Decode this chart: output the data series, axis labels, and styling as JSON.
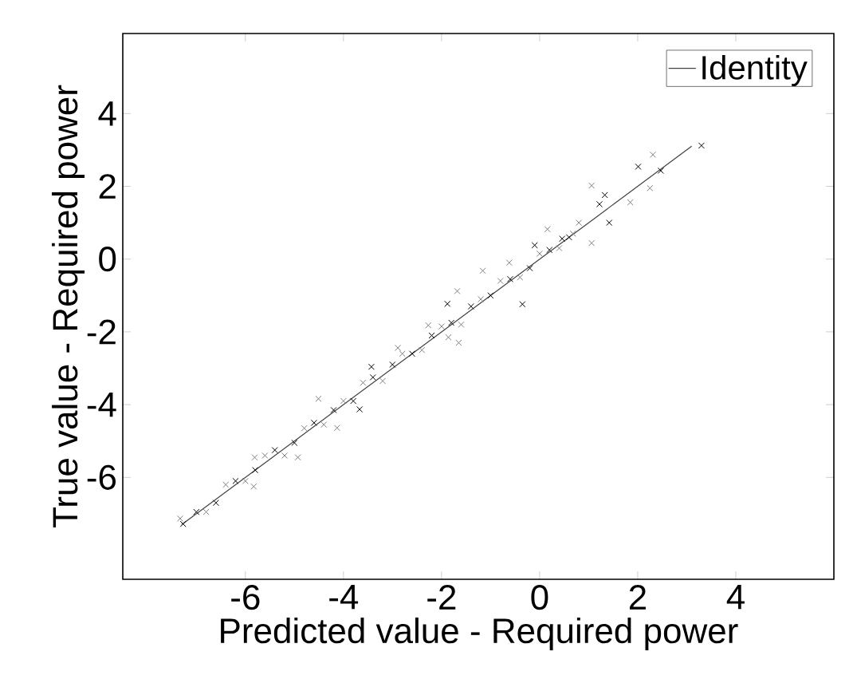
{
  "chart_data": {
    "type": "scatter",
    "xlabel": "Predicted value - Required power",
    "ylabel": "True value - Required power",
    "xlim": [
      -8.5,
      6
    ],
    "ylim": [
      -8.8,
      6.2
    ],
    "xticks": [
      -6,
      -4,
      -2,
      0,
      2,
      4
    ],
    "yticks": [
      -6,
      -4,
      -2,
      0,
      2,
      4
    ],
    "legend": "top right",
    "grid": false,
    "series": [
      {
        "color": "#000000",
        "marker": "cross",
        "x": [
          -7.0,
          -6.6,
          -6.2,
          -5.8,
          -5.4,
          -5.0,
          -4.6,
          -4.2,
          -3.8,
          -3.4,
          -3.0,
          -2.6,
          -2.2,
          -1.8,
          -1.4,
          -1.0,
          -0.6,
          -0.2,
          0.2,
          0.6,
          2.01,
          2.47,
          1.42,
          1.33,
          -0.35,
          -0.1,
          -1.88,
          -3.43,
          -3.67,
          -7.27,
          0.46,
          1.22,
          3.3
        ],
        "values": [
          -6.95,
          -6.7,
          -6.1,
          -5.8,
          -5.25,
          -5.05,
          -4.5,
          -4.15,
          -3.9,
          -3.25,
          -2.9,
          -2.6,
          -2.1,
          -1.75,
          -1.3,
          -1.0,
          -0.55,
          -0.25,
          0.25,
          0.6,
          2.54,
          2.43,
          1.0,
          1.76,
          -1.24,
          0.38,
          -1.23,
          -2.96,
          -4.13,
          -7.28,
          0.56,
          1.51,
          3.12
        ]
      },
      {
        "color": "#808080",
        "marker": "cross",
        "x": [
          -6.8,
          -6.4,
          -6.0,
          -5.6,
          -5.2,
          -4.8,
          -4.4,
          -4.0,
          -3.6,
          -3.2,
          -2.8,
          -2.4,
          -2.0,
          -1.6,
          -1.2,
          -0.8,
          -0.4,
          0.0,
          0.4,
          0.8,
          2.31,
          2.25,
          1.06,
          1.06,
          1.85,
          0.16,
          -1.68,
          -2.27,
          -1.86,
          -1.65,
          -4.13,
          -4.93,
          -5.83,
          -7.33,
          -4.51,
          -5.81,
          -2.89,
          -1.16,
          -0.62,
          0.68
        ],
        "values": [
          -6.95,
          -6.2,
          -6.1,
          -5.4,
          -5.4,
          -4.65,
          -4.55,
          -3.9,
          -3.4,
          -3.35,
          -2.6,
          -2.5,
          -1.85,
          -1.8,
          -1.1,
          -0.6,
          -0.5,
          0.15,
          0.3,
          1.0,
          2.87,
          1.95,
          2.02,
          0.44,
          1.56,
          0.82,
          -0.88,
          -1.82,
          -2.15,
          -2.3,
          -4.64,
          -5.45,
          -6.25,
          -7.13,
          -3.84,
          -5.45,
          -2.44,
          -0.32,
          -0.1,
          0.7
        ]
      },
      {
        "type": "line",
        "name": "Identity",
        "color": "#404040",
        "line_style": "solid",
        "x": [
          -7.3,
          3.1
        ],
        "values": [
          -7.3,
          3.1
        ]
      }
    ]
  }
}
